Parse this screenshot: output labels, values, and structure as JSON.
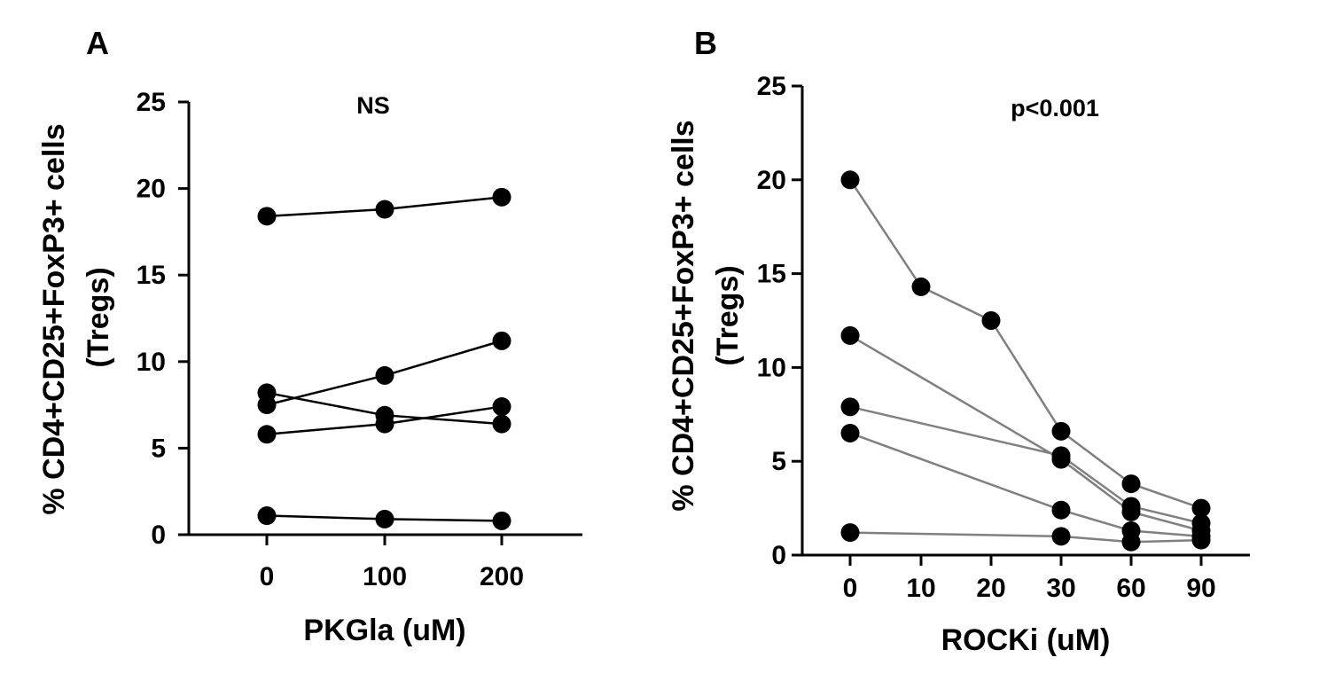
{
  "chart_data": [
    {
      "type": "line",
      "panel_label": "A",
      "annotation": "NS",
      "xlabel": "PKGla (uM)",
      "ylabel_line1": "% CD4+CD25+FoxP3+ cells",
      "ylabel_line2": "(Tregs)",
      "categories": [
        "0",
        "100",
        "200"
      ],
      "yticks": [
        "0",
        "5",
        "10",
        "15",
        "20",
        "25"
      ],
      "ylim": [
        0,
        25
      ],
      "line_color": "#000000",
      "marker_color": "#000000",
      "series": [
        {
          "values": [
            18.4,
            18.8,
            19.5
          ]
        },
        {
          "values": [
            7.5,
            9.2,
            11.2
          ]
        },
        {
          "values": [
            8.2,
            6.9,
            6.4
          ]
        },
        {
          "values": [
            5.8,
            6.4,
            7.4
          ]
        },
        {
          "values": [
            1.1,
            0.9,
            0.8
          ]
        }
      ]
    },
    {
      "type": "line",
      "panel_label": "B",
      "annotation": "p<0.001",
      "xlabel": "ROCKi (uM)",
      "ylabel_line1": "% CD4+CD25+FoxP3+ cells",
      "ylabel_line2": "(Tregs)",
      "categories": [
        "0",
        "10",
        "20",
        "30",
        "60",
        "90"
      ],
      "yticks": [
        "0",
        "5",
        "10",
        "15",
        "20",
        "25"
      ],
      "ylim": [
        0,
        25
      ],
      "line_color": "#808080",
      "marker_color": "#000000",
      "series": [
        {
          "values": [
            20.0,
            14.3,
            12.5,
            6.6,
            3.8,
            2.5
          ]
        },
        {
          "values": [
            11.7,
            null,
            null,
            5.1,
            2.3,
            1.3
          ]
        },
        {
          "values": [
            7.9,
            null,
            null,
            5.3,
            2.6,
            1.7
          ]
        },
        {
          "values": [
            6.5,
            null,
            null,
            2.4,
            1.3,
            1.0
          ]
        },
        {
          "values": [
            1.2,
            null,
            null,
            1.0,
            0.7,
            0.8
          ]
        }
      ]
    }
  ]
}
